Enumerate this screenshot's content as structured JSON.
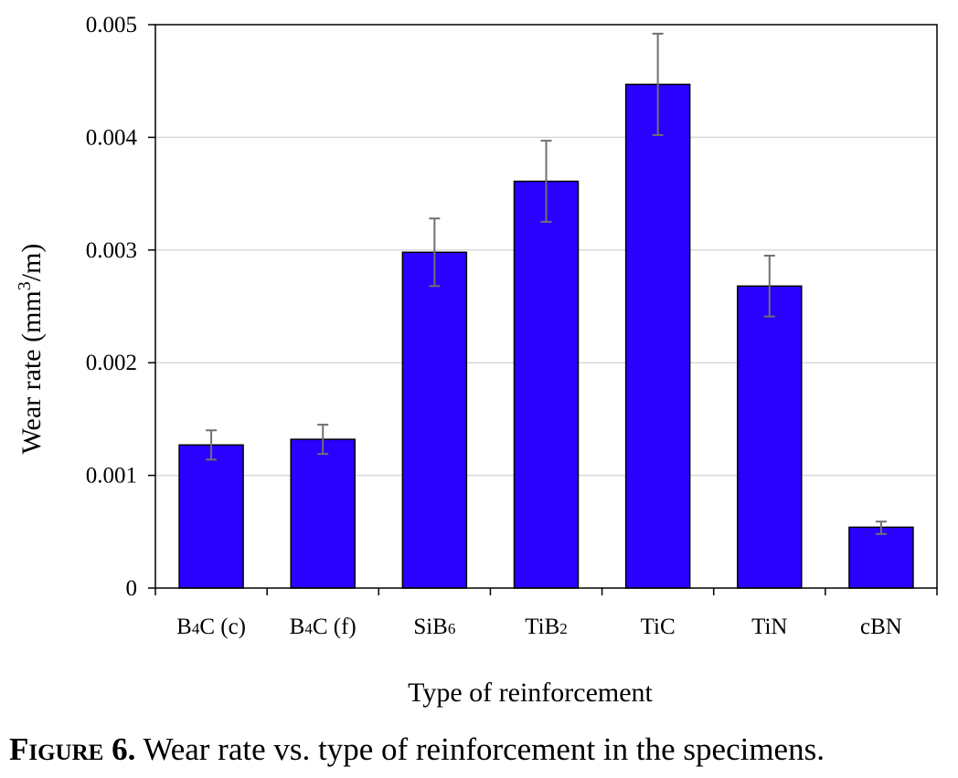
{
  "chart_data": {
    "type": "bar",
    "categories": [
      "B4C (c)",
      "B4C (f)",
      "SiB6",
      "TiB2",
      "TiC",
      "TiN",
      "cBN"
    ],
    "category_labels": [
      {
        "main": "B",
        "sub": "4",
        "rest": "C (c)"
      },
      {
        "main": "B",
        "sub": "4",
        "rest": "C (f)"
      },
      {
        "main": "SiB",
        "sub": "6",
        "rest": ""
      },
      {
        "main": "TiB",
        "sub": "2",
        "rest": ""
      },
      {
        "main": "TiC",
        "sub": "",
        "rest": ""
      },
      {
        "main": "TiN",
        "sub": "",
        "rest": ""
      },
      {
        "main": "cBN",
        "sub": "",
        "rest": ""
      }
    ],
    "values": [
      0.00127,
      0.00132,
      0.00298,
      0.00361,
      0.00447,
      0.00268,
      0.00054
    ],
    "error_low": [
      0.00114,
      0.00119,
      0.00268,
      0.00325,
      0.00402,
      0.00241,
      0.00048
    ],
    "error_high": [
      0.0014,
      0.00145,
      0.00328,
      0.00397,
      0.00492,
      0.00295,
      0.00059
    ],
    "ylim": [
      0,
      0.005
    ],
    "yticks": [
      "0",
      "0.001",
      "0.002",
      "0.003",
      "0.004",
      "0.005"
    ],
    "ytick_values": [
      0,
      0.001,
      0.002,
      0.003,
      0.004,
      0.005
    ],
    "xlabel": "Type of reinforcement",
    "ylabel_parts": {
      "before": "Wear rate (mm",
      "sup": "3",
      "after": "/m)"
    },
    "grid": true,
    "bar_color": "#2a00ff",
    "error_color": "#707070",
    "grid_color": "#d9d9d9"
  },
  "caption": {
    "label": "Figure 6.",
    "text": " Wear rate vs. type of reinforcement in the specimens."
  }
}
